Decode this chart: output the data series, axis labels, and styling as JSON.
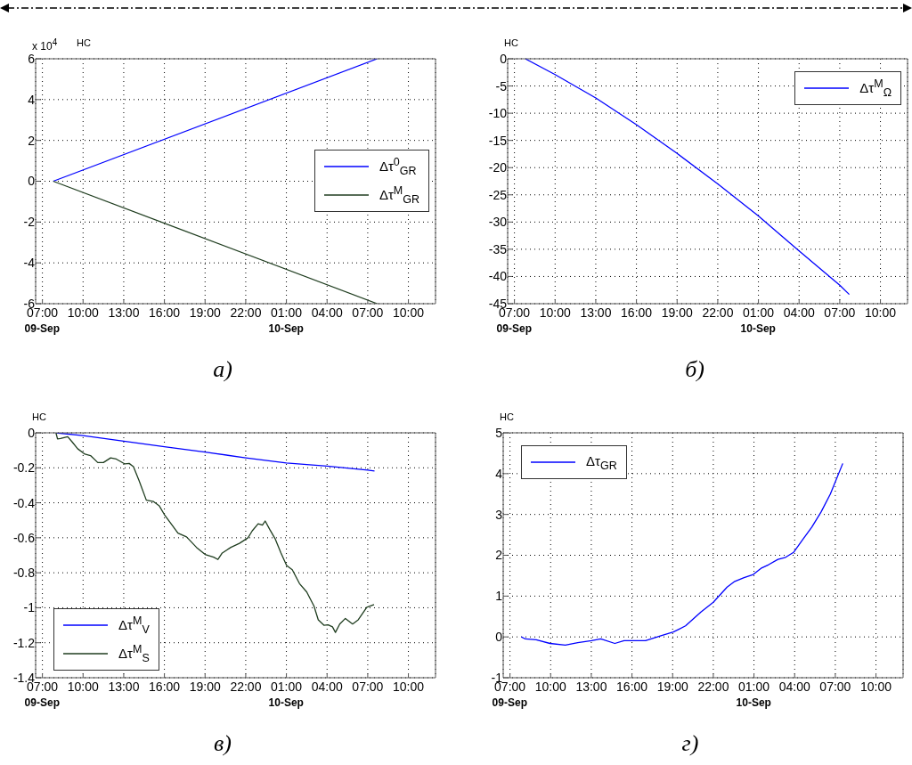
{
  "chart_data": [
    {
      "type": "line",
      "title": "а)",
      "ylabel": "НС",
      "annotations": [
        "x 10$^{4}$"
      ],
      "legend": "right",
      "grid": true,
      "x": [
        "--09-09T07:48",
        "--09-10T07:42"
      ],
      "xlim": [
        "--09-09T06:30",
        "--09-10T12:00"
      ],
      "xticks": [
        {
          "value": "--09-09T07:00",
          "label": "07:00\n09-Sep"
        },
        {
          "value": "--09-09T10:00",
          "label": "10:00"
        },
        {
          "value": "--09-09T13:00",
          "label": "13:00"
        },
        {
          "value": "--09-09T16:00",
          "label": "16:00"
        },
        {
          "value": "--09-09T19:00",
          "label": "19:00"
        },
        {
          "value": "--09-09T22:00",
          "label": "22:00"
        },
        {
          "value": "--09-10T01:00",
          "label": "01:00\n10-Sep"
        },
        {
          "value": "--09-10T04:00",
          "label": "04:00"
        },
        {
          "value": "--09-10T07:00",
          "label": "07:00"
        },
        {
          "value": "--09-10T10:00",
          "label": "10:00"
        }
      ],
      "ylim": [
        -6,
        6
      ],
      "yticks": [
        -6,
        -4,
        -2,
        0,
        2,
        4,
        6
      ],
      "series": [
        {
          "name": "Δτ$^{0}$$_{GR}$",
          "color": "#0000ff",
          "values": [
            0,
            6
          ]
        },
        {
          "name": "Δτ$^{M}$$_{GR}$",
          "color": "#1f3d1f",
          "values": [
            0,
            -6
          ]
        }
      ]
    },
    {
      "type": "line",
      "title": "б)",
      "ylabel": "НС",
      "legend": "top right",
      "grid": true,
      "x": [
        "--09-09T07:48",
        "--09-09T10:00",
        "--09-09T13:00",
        "--09-09T16:00",
        "--09-09T19:00",
        "--09-09T22:00",
        "--09-10T01:00",
        "--09-10T04:00",
        "--09-10T07:00",
        "--09-10T07:42"
      ],
      "xlim": [
        "--09-09T06:30",
        "--09-10T12:00"
      ],
      "xticks": [
        {
          "value": "--09-09T07:00",
          "label": "07:00\n09-Sep"
        },
        {
          "value": "--09-09T10:00",
          "label": "10:00"
        },
        {
          "value": "--09-09T13:00",
          "label": "13:00"
        },
        {
          "value": "--09-09T16:00",
          "label": "16:00"
        },
        {
          "value": "--09-09T19:00",
          "label": "19:00"
        },
        {
          "value": "--09-09T22:00",
          "label": "22:00"
        },
        {
          "value": "--09-10T01:00",
          "label": "01:00\n10-Sep"
        },
        {
          "value": "--09-10T04:00",
          "label": "04:00"
        },
        {
          "value": "--09-10T07:00",
          "label": "07:00"
        },
        {
          "value": "--09-10T10:00",
          "label": "10:00"
        }
      ],
      "ylim": [
        -45,
        0
      ],
      "yticks": [
        -45,
        -40,
        -35,
        -30,
        -25,
        -20,
        -15,
        -10,
        -5,
        0
      ],
      "series": [
        {
          "name": "Δτ$^{M}$$_{Ω}$",
          "color": "#0000ff",
          "values": [
            0,
            -2.9,
            -7.2,
            -12.1,
            -17.4,
            -23.0,
            -28.9,
            -35.3,
            -41.6,
            -43.3
          ]
        }
      ]
    },
    {
      "type": "line",
      "title": "в)",
      "ylabel": "НС",
      "legend": "bottom left",
      "grid": true,
      "xlim": [
        "--09-09T06:30",
        "--09-10T12:00"
      ],
      "xticks": [
        {
          "value": "--09-09T07:00",
          "label": "07:00\n09-Sep"
        },
        {
          "value": "--09-09T10:00",
          "label": "10:00"
        },
        {
          "value": "--09-09T13:00",
          "label": "13:00"
        },
        {
          "value": "--09-09T16:00",
          "label": "16:00"
        },
        {
          "value": "--09-09T19:00",
          "label": "19:00"
        },
        {
          "value": "--09-09T22:00",
          "label": "22:00"
        },
        {
          "value": "--09-10T01:00",
          "label": "01:00\n10-Sep"
        },
        {
          "value": "--09-10T04:00",
          "label": "04:00"
        },
        {
          "value": "--09-10T07:00",
          "label": "07:00"
        },
        {
          "value": "--09-10T10:00",
          "label": "10:00"
        }
      ],
      "ylim": [
        -1.4,
        0
      ],
      "yticks": [
        -1.4,
        -1.2,
        -1,
        -0.8,
        -0.6,
        -0.4,
        -0.2,
        0
      ],
      "series": [
        {
          "name": "Δτ$^{M}$$_{V}$",
          "color": "#0000ff",
          "x": [
            "--09-09T08:00",
            "--09-09T10:00",
            "--09-09T13:00",
            "--09-09T16:00",
            "--09-09T19:00",
            "--09-09T22:00",
            "--09-10T01:00",
            "--09-10T04:00",
            "--09-10T07:00",
            "--09-10T07:30"
          ],
          "values": [
            0,
            -0.016,
            -0.048,
            -0.08,
            -0.11,
            -0.143,
            -0.172,
            -0.19,
            -0.213,
            -0.218
          ]
        },
        {
          "name": "Δτ$^{M}$$_{S}$",
          "color": "#1f3d1f",
          "x": [
            "--09-09T08:00",
            "--09-09T08:07",
            "--09-09T08:20",
            "--09-09T08:52",
            "--09-09T09:11",
            "--09-09T09:36",
            "--09-09T10:08",
            "--09-09T10:33",
            "--09-09T11:05",
            "--09-09T11:30",
            "--09-09T12:02",
            "--09-09T12:27",
            "--09-09T13:05",
            "--09-09T13:24",
            "--09-09T13:43",
            "--09-09T14:08",
            "--09-09T14:40",
            "--09-09T15:12",
            "--09-09T15:37",
            "--09-09T16:02",
            "--09-09T16:34",
            "--09-09T17:00",
            "--09-09T17:38",
            "--09-09T18:22",
            "--09-09T19:00",
            "--09-09T19:38",
            "--09-09T19:57",
            "--09-09T20:16",
            "--09-09T20:54",
            "--09-09T21:32",
            "--09-09T22:10",
            "--09-09T22:29",
            "--09-09T22:55",
            "--09-09T23:14",
            "--09-09T23:26",
            "--09-09T23:46",
            "--09-10T00:11",
            "--09-10T00:36",
            "--09-10T01:01",
            "--09-10T01:26",
            "--09-10T01:58",
            "--09-10T02:30",
            "--09-10T03:02",
            "--09-10T03:21",
            "--09-10T03:46",
            "--09-10T04:05",
            "--09-10T04:24",
            "--09-10T04:37",
            "--09-10T04:56",
            "--09-10T05:21",
            "--09-10T05:53",
            "--09-10T06:18",
            "--09-10T06:56",
            "--09-10T07:28"
          ],
          "values": [
            0,
            -0.035,
            -0.032,
            -0.022,
            -0.051,
            -0.091,
            -0.122,
            -0.13,
            -0.17,
            -0.17,
            -0.143,
            -0.15,
            -0.178,
            -0.175,
            -0.194,
            -0.274,
            -0.385,
            -0.393,
            -0.417,
            -0.472,
            -0.528,
            -0.573,
            -0.595,
            -0.655,
            -0.695,
            -0.711,
            -0.724,
            -0.687,
            -0.655,
            -0.632,
            -0.6,
            -0.56,
            -0.52,
            -0.528,
            -0.504,
            -0.552,
            -0.608,
            -0.687,
            -0.759,
            -0.783,
            -0.862,
            -0.91,
            -0.99,
            -1.069,
            -1.1,
            -1.098,
            -1.109,
            -1.141,
            -1.093,
            -1.061,
            -1.093,
            -1.069,
            -0.997,
            -0.982
          ]
        }
      ]
    },
    {
      "type": "line",
      "title": "г)",
      "ylabel": "НС",
      "legend": "top left",
      "grid": true,
      "x": [
        "--09-09T07:50",
        "--09-09T08:08",
        "--09-09T08:56",
        "--09-09T09:57",
        "--09-09T11:05",
        "--09-09T12:00",
        "--09-09T13:01",
        "--09-09T13:42",
        "--09-09T14:44",
        "--09-09T15:25",
        "--09-09T17:00",
        "--09-09T18:08",
        "--09-09T19:03",
        "--09-09T19:57",
        "--09-09T21:05",
        "--09-09T22:00",
        "--09-09T23:01",
        "--09-09T23:35",
        "--09-10T00:16",
        "--09-10T00:57",
        "--09-10T01:31",
        "--09-10T02:05",
        "--09-10T02:46",
        "--09-10T03:20",
        "--09-10T03:55",
        "--09-10T04:35",
        "--09-10T05:16",
        "--09-10T05:57",
        "--09-10T06:38",
        "--09-10T07:33"
      ],
      "xlim": [
        "--09-09T06:30",
        "--09-10T12:00"
      ],
      "xticks": [
        {
          "value": "--09-09T07:00",
          "label": "07:00\n09-Sep"
        },
        {
          "value": "--09-09T10:00",
          "label": "10:00"
        },
        {
          "value": "--09-09T13:00",
          "label": "13:00"
        },
        {
          "value": "--09-09T16:00",
          "label": "16:00"
        },
        {
          "value": "--09-09T19:00",
          "label": "19:00"
        },
        {
          "value": "--09-09T22:00",
          "label": "22:00"
        },
        {
          "value": "--09-10T01:00",
          "label": "01:00\n10-Sep"
        },
        {
          "value": "--09-10T04:00",
          "label": "04:00"
        },
        {
          "value": "--09-10T07:00",
          "label": "07:00"
        },
        {
          "value": "--09-10T10:00",
          "label": "10:00"
        }
      ],
      "ylim": [
        -1,
        5
      ],
      "yticks": [
        -1,
        0,
        1,
        2,
        3,
        4,
        5
      ],
      "series": [
        {
          "name": "Δτ$_{GR}$",
          "color": "#0000ff",
          "values": [
            0,
            -0.05,
            -0.07,
            -0.16,
            -0.2,
            -0.14,
            -0.09,
            -0.05,
            -0.16,
            -0.09,
            -0.09,
            0.03,
            0.12,
            0.27,
            0.61,
            0.85,
            1.22,
            1.36,
            1.45,
            1.53,
            1.68,
            1.77,
            1.9,
            1.95,
            2.07,
            2.38,
            2.69,
            3.06,
            3.5,
            4.25
          ]
        }
      ]
    }
  ]
}
